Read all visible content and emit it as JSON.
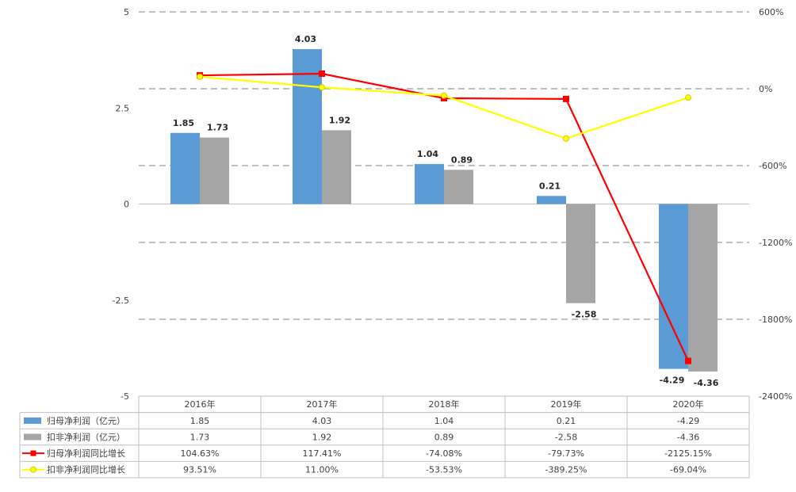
{
  "chart_data": {
    "type": "bar",
    "categories": [
      "2016年",
      "2017年",
      "2018年",
      "2019年",
      "2020年"
    ],
    "left_axis": {
      "ylim": [
        -5,
        5
      ],
      "ticks": [
        "5",
        "2.5",
        "0",
        "-2.5",
        "-5"
      ],
      "tick_values": [
        5,
        2.5,
        0,
        -2.5,
        -5
      ]
    },
    "right_axis": {
      "ylim": [
        -2400,
        600
      ],
      "ticks": [
        "600%",
        "0%",
        "-600%",
        "-1200%",
        "-1800%",
        "-2400%"
      ],
      "tick_values": [
        600,
        0,
        -600,
        -1200,
        -1800,
        -2400
      ]
    },
    "series": [
      {
        "name": "归母净利润（亿元）",
        "kind": "bar",
        "axis": "left",
        "color": "#5b9bd5",
        "values": [
          1.85,
          4.03,
          1.04,
          0.21,
          -4.29
        ],
        "labels": [
          "1.85",
          "4.03",
          "1.04",
          "0.21",
          "-4.29"
        ],
        "table": [
          "1.85",
          "4.03",
          "1.04",
          "0.21",
          "-4.29"
        ]
      },
      {
        "name": "扣非净利润（亿元）",
        "kind": "bar",
        "axis": "left",
        "color": "#a5a5a5",
        "values": [
          1.73,
          1.92,
          0.89,
          -2.58,
          -4.36
        ],
        "labels": [
          "1.73",
          "1.92",
          "0.89",
          "-2.58",
          "-4.36"
        ],
        "table": [
          "1.73",
          "1.92",
          "0.89",
          "-2.58",
          "-4.36"
        ]
      },
      {
        "name": "归母净利润同比增长",
        "kind": "line",
        "axis": "right",
        "color": "#ff0000",
        "marker": "square",
        "values": [
          104.63,
          117.41,
          -74.08,
          -79.73,
          -2125.15
        ],
        "table": [
          "104.63%",
          "117.41%",
          "-74.08%",
          "-79.73%",
          "-2125.15%"
        ]
      },
      {
        "name": "扣非净利润同比增长",
        "kind": "line",
        "axis": "right",
        "color": "#ffff00",
        "marker": "circle",
        "values": [
          93.51,
          11.0,
          -53.53,
          -389.25,
          -69.04
        ],
        "table": [
          "93.51%",
          "11.00%",
          "-53.53%",
          "-389.25%",
          "-69.04%"
        ]
      }
    ],
    "grid": true,
    "legend": "data-table"
  }
}
